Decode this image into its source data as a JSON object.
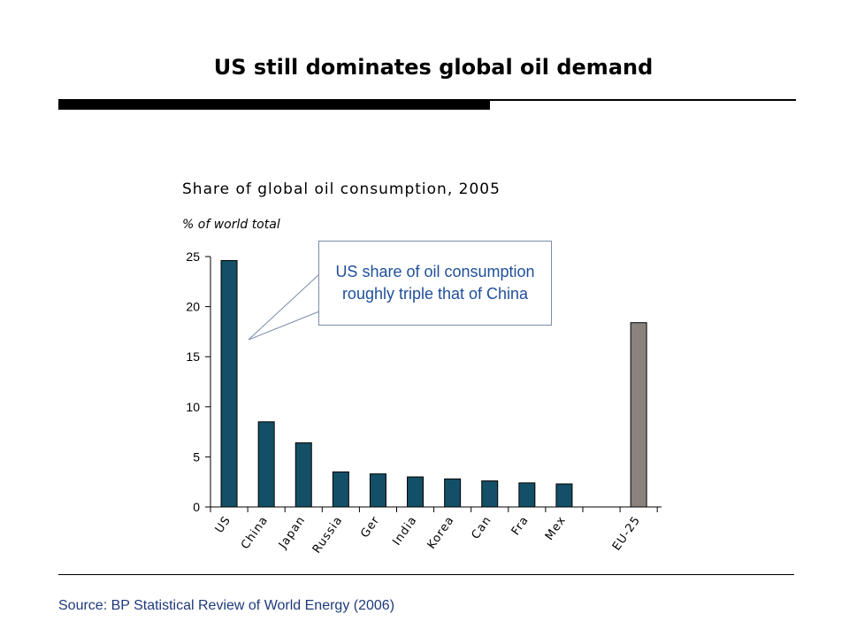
{
  "slide": {
    "title": "US still dominates global oil demand",
    "source": "Source: BP Statistical Review of World Energy (2006)"
  },
  "chart_data": {
    "type": "bar",
    "title": "Share of global oil consumption, 2005",
    "ylabel": "% of world total",
    "xlabel": "",
    "categories": [
      "US",
      "China",
      "Japan",
      "Russia",
      "Ger",
      "India",
      "Korea",
      "Can",
      "Fra",
      "Mex",
      "EU-25"
    ],
    "values": [
      24.6,
      8.5,
      6.4,
      3.5,
      3.3,
      3.0,
      2.8,
      2.6,
      2.4,
      2.3,
      18.4
    ],
    "ylim": [
      0,
      25
    ],
    "yticks": [
      0,
      5,
      10,
      15,
      20,
      25
    ],
    "grid": false,
    "colors": {
      "country": "#134f66",
      "aggregate": "#8a827c"
    },
    "annotation": "US share of oil consumption roughly triple that of China"
  }
}
